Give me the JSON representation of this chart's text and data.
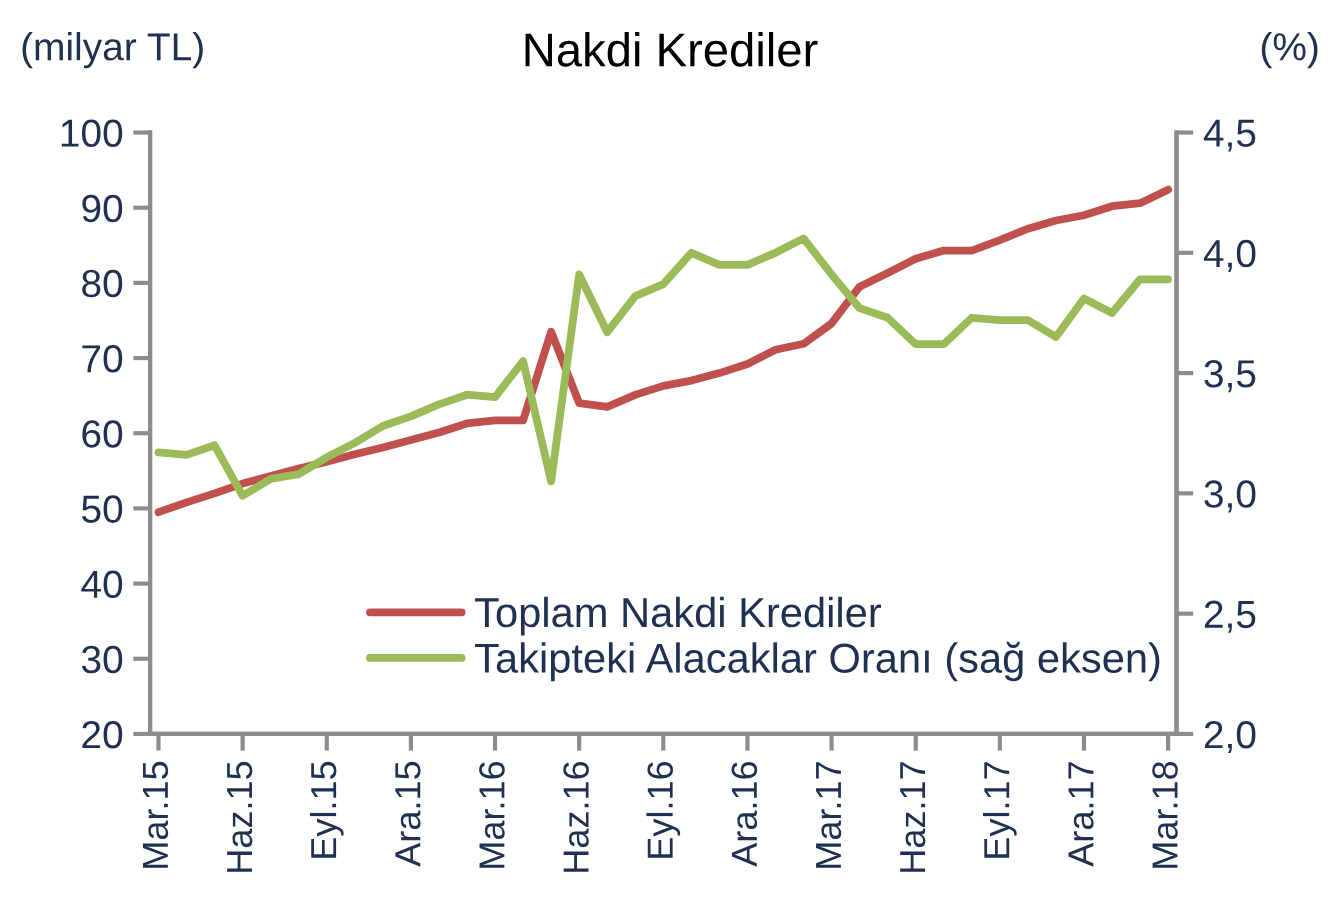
{
  "chart_data": {
    "type": "line",
    "title": "Nakdi Krediler",
    "ylabel": "(milyar TL)",
    "y2label": "(%)",
    "categories": [
      "Mar.15",
      null,
      null,
      "Haz.15",
      null,
      null,
      "Eyl.15",
      null,
      null,
      "Ara.15",
      null,
      null,
      "Mar.16",
      null,
      null,
      "Haz.16",
      null,
      null,
      "Eyl.16",
      null,
      null,
      "Ara.16",
      null,
      null,
      "Mar.17",
      null,
      null,
      "Haz.17",
      null,
      null,
      "Eyl.17",
      null,
      null,
      "Ara.17",
      null,
      null,
      "Mar.18"
    ],
    "series": [
      {
        "name": "Toplam Nakdi Krediler",
        "color": "#c0504d",
        "values": [
          49.5,
          50.8,
          52,
          53.3,
          54.3,
          55.3,
          56.2,
          57.2,
          58.1,
          59.1,
          60.1,
          61.3,
          61.7,
          61.7,
          73.5,
          64,
          63.5,
          65.1,
          66.3,
          67,
          68,
          69.2,
          71.1,
          71.9,
          74.6,
          79.5,
          81.3,
          83.2,
          84.3,
          84.3,
          85.7,
          87.2,
          88.3,
          89,
          90.2,
          90.6,
          92.4
        ]
      },
      {
        "name": "Takipteki Alacaklar Oranı (sağ eksen)",
        "color": "#9bbb59",
        "axis": "y2",
        "values": [
          3.17,
          3.16,
          3.2,
          2.99,
          3.06,
          3.08,
          3.15,
          3.21,
          3.28,
          3.32,
          3.37,
          3.41,
          3.4,
          3.55,
          3.05,
          3.91,
          3.67,
          3.82,
          3.87,
          4.0,
          3.95,
          3.95,
          4.0,
          4.06,
          3.91,
          3.77,
          3.73,
          3.62,
          3.62,
          3.73,
          3.72,
          3.72,
          3.65,
          3.81,
          3.75,
          3.89,
          3.89
        ]
      }
    ],
    "ylim": [
      20,
      100
    ],
    "yticks": [
      20,
      30,
      40,
      50,
      60,
      70,
      80,
      90,
      100
    ],
    "y2lim": [
      2.0,
      4.5
    ],
    "y2ticks": [
      {
        "value": 2.0,
        "label": "2,0"
      },
      {
        "value": 2.5,
        "label": "2,5"
      },
      {
        "value": 3.0,
        "label": "3,0"
      },
      {
        "value": 3.5,
        "label": "3,5"
      },
      {
        "value": 4.0,
        "label": "4,0"
      },
      {
        "value": 4.5,
        "label": "4,5"
      }
    ],
    "grid": false,
    "legend": "bottom",
    "marker": "none",
    "line_style": "solid"
  }
}
